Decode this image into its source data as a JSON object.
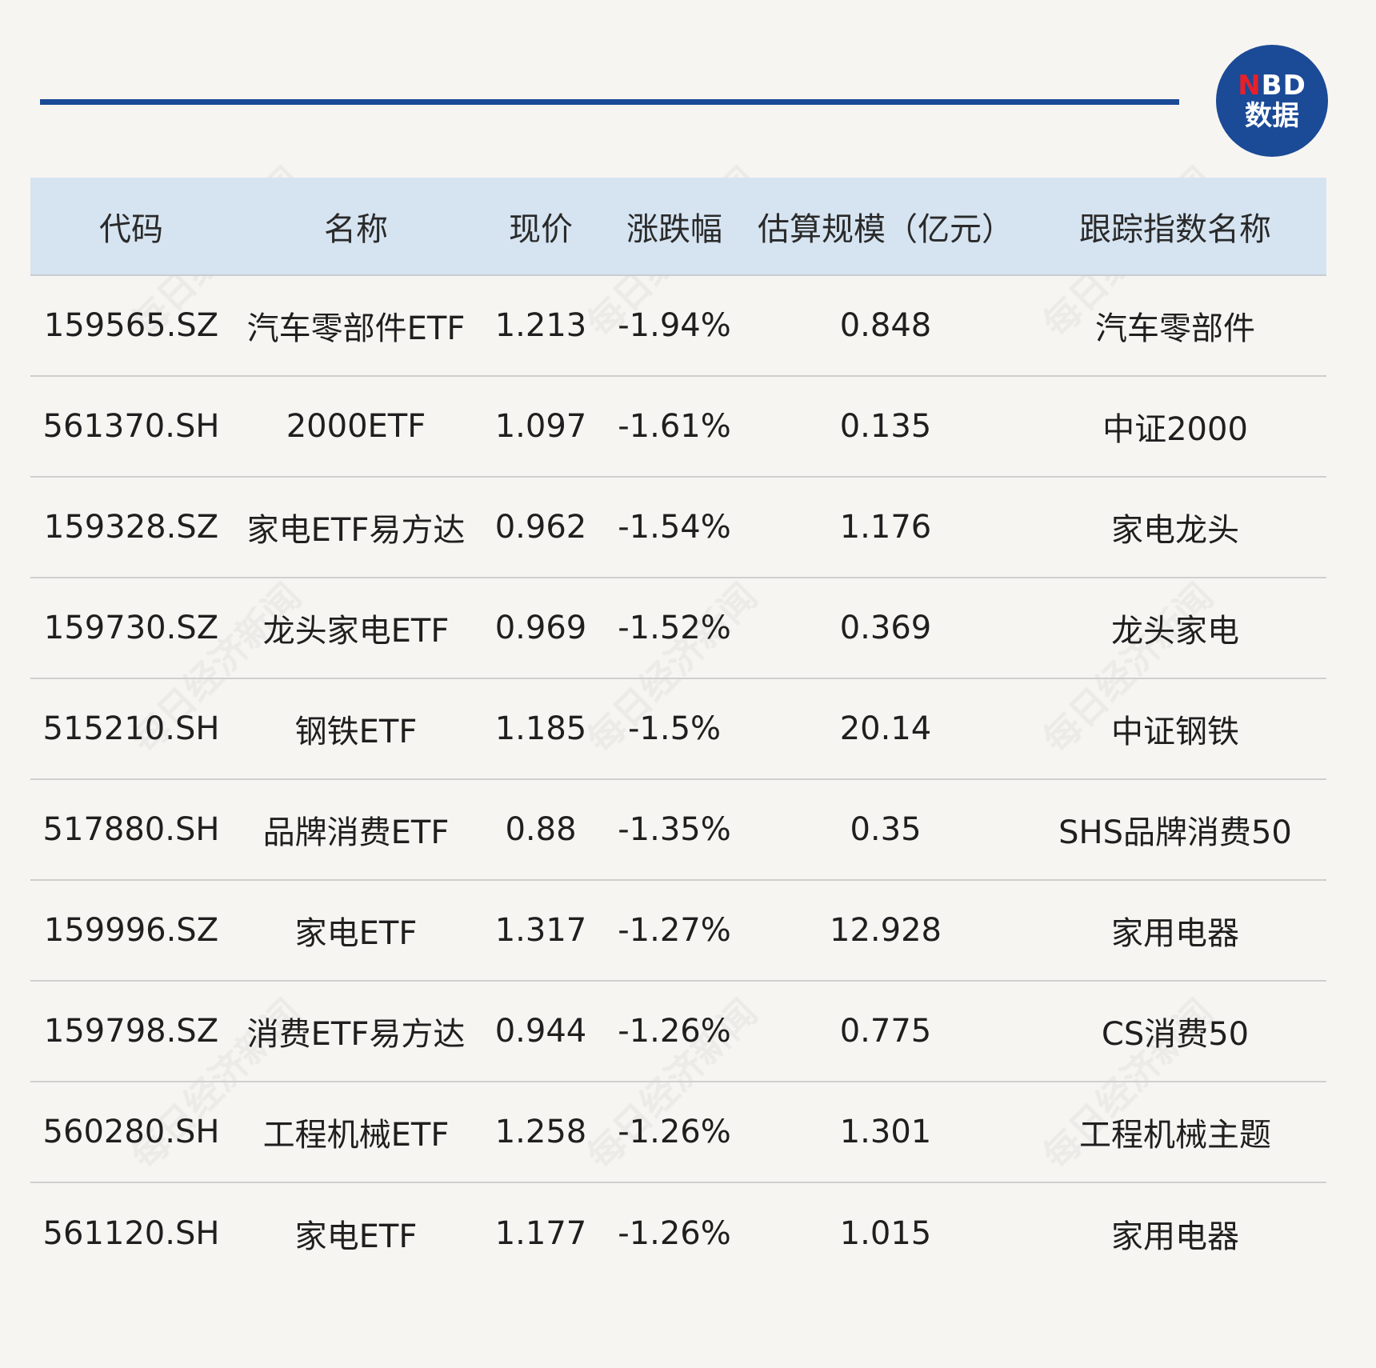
{
  "logo": {
    "line1_n": "N",
    "line1_rest": "BD",
    "line2": "数据"
  },
  "watermark": "每日经济新闻",
  "table": {
    "headers": [
      "代码",
      "名称",
      "现价",
      "涨跌幅",
      "估算规模（亿元）",
      "跟踪指数名称"
    ],
    "rows": [
      [
        "159565.SZ",
        "汽车零部件ETF",
        "1.213",
        "-1.94%",
        "0.848",
        "汽车零部件"
      ],
      [
        "561370.SH",
        "2000ETF",
        "1.097",
        "-1.61%",
        "0.135",
        "中证2000"
      ],
      [
        "159328.SZ",
        "家电ETF易方达",
        "0.962",
        "-1.54%",
        "1.176",
        "家电龙头"
      ],
      [
        "159730.SZ",
        "龙头家电ETF",
        "0.969",
        "-1.52%",
        "0.369",
        "龙头家电"
      ],
      [
        "515210.SH",
        "钢铁ETF",
        "1.185",
        "-1.5%",
        "20.14",
        "中证钢铁"
      ],
      [
        "517880.SH",
        "品牌消费ETF",
        "0.88",
        "-1.35%",
        "0.35",
        "SHS品牌消费50"
      ],
      [
        "159996.SZ",
        "家电ETF",
        "1.317",
        "-1.27%",
        "12.928",
        "家用电器"
      ],
      [
        "159798.SZ",
        "消费ETF易方达",
        "0.944",
        "-1.26%",
        "0.775",
        "CS消费50"
      ],
      [
        "560280.SH",
        "工程机械ETF",
        "1.258",
        "-1.26%",
        "1.301",
        "工程机械主题"
      ],
      [
        "561120.SH",
        "家电ETF",
        "1.177",
        "-1.26%",
        "1.015",
        "家用电器"
      ]
    ]
  }
}
